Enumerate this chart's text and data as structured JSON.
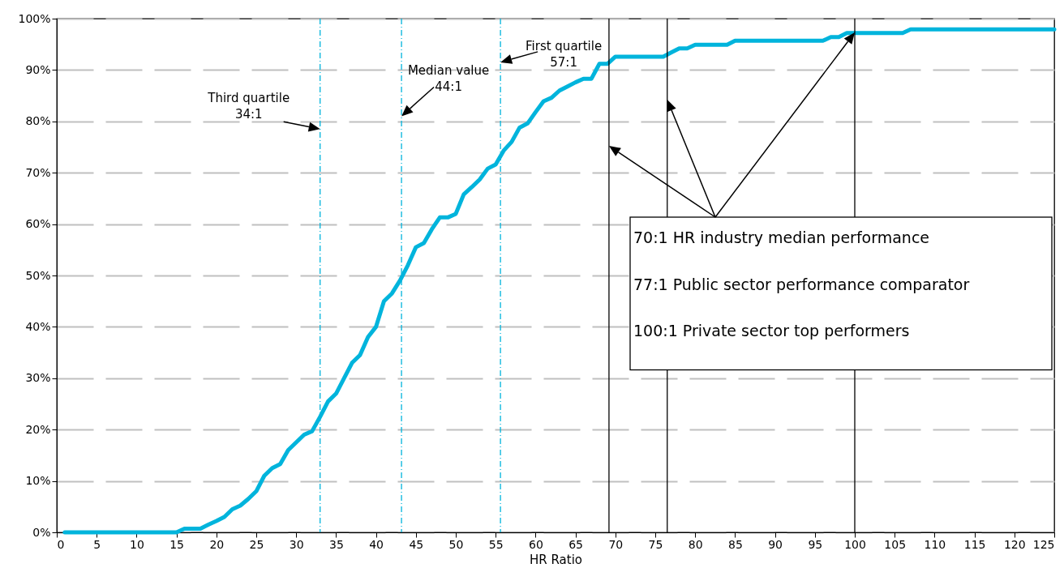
{
  "chart_data": {
    "type": "line",
    "xlabel": "HR Ratio",
    "x": [
      1,
      2,
      3,
      4,
      5,
      6,
      7,
      8,
      9,
      10,
      11,
      12,
      13,
      14,
      15,
      16,
      17,
      18,
      19,
      20,
      21,
      22,
      23,
      24,
      25,
      26,
      27,
      28,
      29,
      30,
      31,
      32,
      33,
      34,
      35,
      36,
      37,
      38,
      39,
      40,
      41,
      42,
      43,
      44,
      45,
      46,
      47,
      48,
      49,
      50,
      51,
      52,
      53,
      54,
      55,
      56,
      57,
      58,
      59,
      60,
      61,
      62,
      63,
      64,
      65,
      66,
      67,
      68,
      69,
      70,
      71,
      72,
      73,
      74,
      75,
      76,
      77,
      78,
      79,
      80,
      81,
      82,
      83,
      84,
      85,
      86,
      87,
      88,
      89,
      90,
      91,
      92,
      93,
      94,
      95,
      96,
      97,
      98,
      99,
      100,
      101,
      102,
      103,
      104,
      105,
      106,
      107,
      108,
      109,
      110,
      111,
      112,
      113,
      114,
      115,
      116,
      117,
      118,
      119,
      120,
      121,
      122,
      123,
      124,
      125
    ],
    "series": [
      {
        "color": "#00b4dc",
        "values": [
          0,
          0,
          0,
          0,
          0,
          0,
          0,
          0,
          0,
          0,
          0,
          0,
          0,
          0,
          0,
          0.7,
          0.7,
          0.7,
          1.5,
          2.2,
          3,
          4.5,
          5.2,
          6.5,
          8,
          11,
          12.5,
          13.3,
          16,
          17.5,
          19,
          19.7,
          22.5,
          25.5,
          27,
          30,
          33,
          34.5,
          38,
          40,
          45,
          46.5,
          49,
          52,
          55.5,
          56.3,
          59,
          61.3,
          61.3,
          62,
          65.8,
          67.2,
          68.7,
          70.8,
          71.6,
          74.3,
          76,
          78.8,
          79.6,
          81.8,
          83.9,
          84.6,
          86,
          86.8,
          87.6,
          88.3,
          88.3,
          91.2,
          91.2,
          92.6,
          92.6,
          92.6,
          92.6,
          92.6,
          92.6,
          92.6,
          93.4,
          94.2,
          94.2,
          94.9,
          94.9,
          94.9,
          94.9,
          94.9,
          95.7,
          95.7,
          95.7,
          95.7,
          95.7,
          95.7,
          95.7,
          95.7,
          95.7,
          95.7,
          95.7,
          95.7,
          96.4,
          96.4,
          97.2,
          97.2,
          97.2,
          97.2,
          97.2,
          97.2,
          97.2,
          97.2,
          97.9,
          97.9,
          97.9,
          97.9,
          97.9,
          97.9,
          97.9,
          97.9,
          97.9,
          97.9,
          97.9,
          97.9,
          97.9,
          97.9,
          97.9,
          97.9,
          97.9,
          97.9,
          97.9
        ]
      }
    ],
    "xlim": [
      0,
      125
    ],
    "xticks": [
      0,
      5,
      10,
      15,
      20,
      25,
      30,
      35,
      40,
      45,
      50,
      55,
      60,
      65,
      70,
      75,
      80,
      85,
      90,
      95,
      100,
      105,
      110,
      115,
      120,
      125
    ],
    "ylim": [
      0,
      100
    ],
    "yticks": [
      {
        "value": 0,
        "label": "0%"
      },
      {
        "value": 10,
        "label": "10%"
      },
      {
        "value": 20,
        "label": "20%"
      },
      {
        "value": 30,
        "label": "30%"
      },
      {
        "value": 40,
        "label": "40%"
      },
      {
        "value": 50,
        "label": "50%"
      },
      {
        "value": 60,
        "label": "60%"
      },
      {
        "value": 70,
        "label": "70%"
      },
      {
        "value": 80,
        "label": "80%"
      },
      {
        "value": 90,
        "label": "90%"
      },
      {
        "value": 100,
        "label": "100%"
      }
    ],
    "grid": "y",
    "line_style": "solid",
    "marker": "none",
    "ref_lines": [
      {
        "axis": "x",
        "value": 33,
        "color": "#00b4dc",
        "line_style": "dashed"
      },
      {
        "axis": "x",
        "value": 43.2,
        "color": "#00b4dc",
        "line_style": "dashed"
      },
      {
        "axis": "x",
        "value": 55.6,
        "color": "#00b4dc",
        "line_style": "dashed"
      },
      {
        "axis": "x",
        "value": 69.2,
        "color": "#000000",
        "line_style": "solid"
      },
      {
        "axis": "x",
        "value": 76.5,
        "color": "#000000",
        "line_style": "solid"
      },
      {
        "axis": "x",
        "value": 100,
        "color": "#000000",
        "line_style": "solid"
      }
    ],
    "annotations": [
      {
        "text": "Third quartile\n34:1",
        "x": 33,
        "y": 78.5
      },
      {
        "text": "Median value\n44:1",
        "x": 43.2,
        "y": 81
      },
      {
        "text": "First quartile\n57:1",
        "x": 55.6,
        "y": 91.5
      },
      "70:1 HR industry median performance",
      "77:1 Public sector performance comparator",
      "100:1 Private sector top performers"
    ]
  }
}
